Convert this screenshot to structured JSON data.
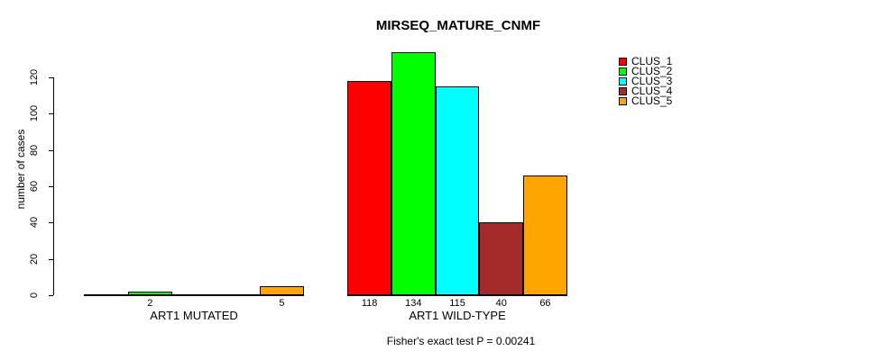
{
  "chart_data": {
    "type": "bar",
    "title": "MIRSEQ_MATURE_CNMF",
    "ylabel": "number of cases",
    "xlabel": "",
    "yticks": [
      0,
      20,
      40,
      60,
      80,
      100,
      120
    ],
    "ylim": [
      0,
      140
    ],
    "grid": false,
    "legend_position": "top-right",
    "categories": [
      "ART1 MUTATED",
      "ART1 WILD-TYPE"
    ],
    "series": [
      {
        "name": "CLUS_1",
        "color": "#FF0000",
        "values": [
          0,
          118
        ]
      },
      {
        "name": "CLUS_2",
        "color": "#00FF00",
        "values": [
          2,
          134
        ]
      },
      {
        "name": "CLUS_3",
        "color": "#00FFFF",
        "values": [
          0,
          115
        ]
      },
      {
        "name": "CLUS_4",
        "color": "#A52A2A",
        "values": [
          0,
          40
        ]
      },
      {
        "name": "CLUS_5",
        "color": "#FFA500",
        "values": [
          5,
          66
        ]
      }
    ],
    "bar_value_labels": [
      [
        "",
        "2",
        "",
        "",
        "5"
      ],
      [
        "118",
        "134",
        "115",
        "40",
        "66"
      ]
    ],
    "annotation": "Fisher's exact test P = 0.00241",
    "text_color": "#000000",
    "background_color": "#FFFFFF"
  }
}
